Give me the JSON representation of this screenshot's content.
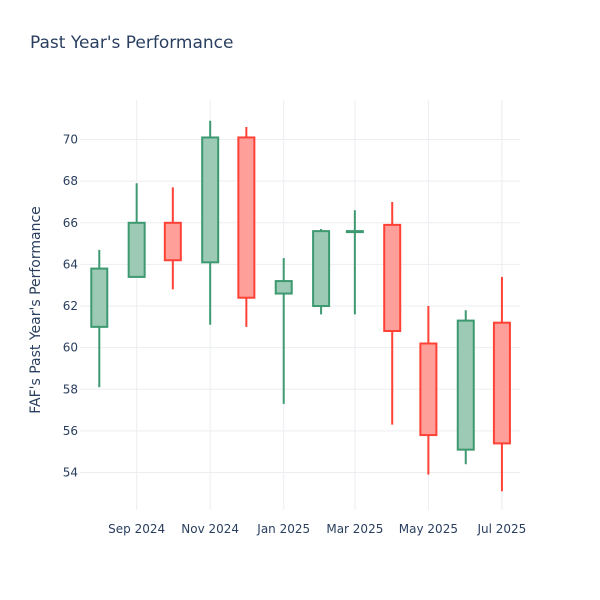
{
  "chart_data": {
    "type": "candlestick",
    "title": "Past Year's Performance",
    "xlabel": "",
    "ylabel": "FAF's Past Year's Performance",
    "ylim": [
      52.2,
      71.9
    ],
    "yticks": [
      54,
      56,
      58,
      60,
      62,
      64,
      66,
      68,
      70
    ],
    "xticks": [
      {
        "date": "2024-09-01",
        "label": "Sep 2024"
      },
      {
        "date": "2024-11-01",
        "label": "Nov 2024"
      },
      {
        "date": "2025-01-01",
        "label": "Jan 2025"
      },
      {
        "date": "2025-03-01",
        "label": "Mar 2025"
      },
      {
        "date": "2025-05-01",
        "label": "May 2025"
      },
      {
        "date": "2025-07-01",
        "label": "Jul 2025"
      }
    ],
    "xrange": [
      "2024-07-16",
      "2025-07-16"
    ],
    "colors": {
      "increasing_line": "#3d9970",
      "increasing_fill": "#9ccab5",
      "decreasing_line": "#ff4136",
      "decreasing_fill": "#ff9f9a",
      "grid": "#ebedf0",
      "text": "#2a3f5f"
    },
    "candles": [
      {
        "date": "2024-08-01",
        "open": 61.0,
        "high": 64.7,
        "low": 58.1,
        "close": 63.8
      },
      {
        "date": "2024-09-01",
        "open": 63.4,
        "high": 67.9,
        "low": 63.4,
        "close": 66.0
      },
      {
        "date": "2024-10-01",
        "open": 66.0,
        "high": 67.7,
        "low": 62.8,
        "close": 64.2
      },
      {
        "date": "2024-11-01",
        "open": 64.1,
        "high": 70.9,
        "low": 61.1,
        "close": 70.1
      },
      {
        "date": "2024-12-01",
        "open": 70.1,
        "high": 70.6,
        "low": 61.0,
        "close": 62.4
      },
      {
        "date": "2025-01-01",
        "open": 62.6,
        "high": 64.3,
        "low": 57.3,
        "close": 63.2
      },
      {
        "date": "2025-02-01",
        "open": 62.0,
        "high": 65.7,
        "low": 61.6,
        "close": 65.6
      },
      {
        "date": "2025-03-01",
        "open": 65.6,
        "high": 66.6,
        "low": 61.6,
        "close": 65.6
      },
      {
        "date": "2025-04-01",
        "open": 65.9,
        "high": 67.0,
        "low": 56.3,
        "close": 60.8
      },
      {
        "date": "2025-05-01",
        "open": 60.2,
        "high": 62.0,
        "low": 53.9,
        "close": 55.8
      },
      {
        "date": "2025-06-01",
        "open": 55.1,
        "high": 61.8,
        "low": 54.4,
        "close": 61.3
      },
      {
        "date": "2025-07-01",
        "open": 61.2,
        "high": 63.4,
        "low": 53.1,
        "close": 55.4
      }
    ]
  }
}
